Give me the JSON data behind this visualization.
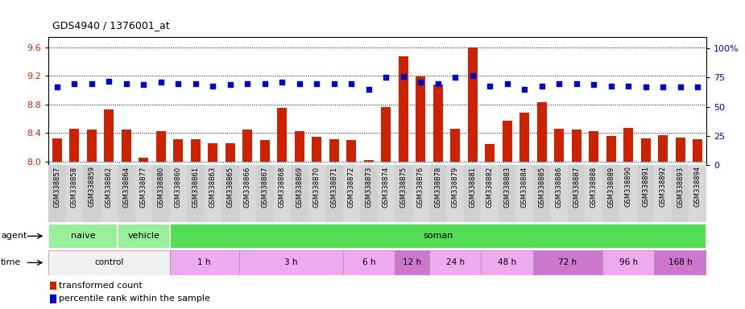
{
  "title": "GDS4940 / 1376001_at",
  "samples": [
    "GSM338857",
    "GSM338858",
    "GSM338859",
    "GSM338862",
    "GSM338864",
    "GSM338877",
    "GSM338880",
    "GSM338860",
    "GSM338861",
    "GSM338863",
    "GSM338865",
    "GSM338866",
    "GSM338867",
    "GSM338868",
    "GSM338869",
    "GSM338870",
    "GSM338871",
    "GSM338872",
    "GSM338873",
    "GSM338874",
    "GSM338875",
    "GSM338876",
    "GSM338878",
    "GSM338879",
    "GSM338881",
    "GSM338882",
    "GSM338883",
    "GSM338884",
    "GSM338885",
    "GSM338886",
    "GSM338887",
    "GSM338888",
    "GSM338889",
    "GSM338890",
    "GSM338891",
    "GSM338892",
    "GSM338893",
    "GSM338894"
  ],
  "red_values": [
    8.32,
    8.46,
    8.45,
    8.73,
    8.45,
    8.05,
    8.42,
    8.31,
    8.31,
    8.25,
    8.26,
    8.45,
    8.3,
    8.75,
    8.43,
    8.35,
    8.31,
    8.3,
    8.02,
    8.76,
    9.47,
    9.19,
    9.08,
    8.46,
    9.6,
    8.24,
    8.57,
    8.68,
    8.83,
    8.46,
    8.45,
    8.42,
    8.36,
    8.47,
    8.32,
    8.37,
    8.34,
    8.31
  ],
  "blue_values": [
    67,
    70,
    70,
    72,
    70,
    69,
    71,
    70,
    70,
    68,
    69,
    70,
    70,
    71,
    70,
    70,
    70,
    70,
    65,
    75,
    76,
    71,
    70,
    75,
    77,
    68,
    70,
    65,
    68,
    70,
    70,
    69,
    68,
    68,
    67,
    67,
    67,
    67
  ],
  "ylim_left": [
    7.95,
    9.75
  ],
  "ylim_right": [
    0,
    110
  ],
  "yticks_left": [
    8.0,
    8.4,
    8.8,
    9.2,
    9.6
  ],
  "yticks_right": [
    0,
    25,
    50,
    75,
    100
  ],
  "bar_color": "#cc2200",
  "dot_color": "#0000cc",
  "xtick_bg": "#d8d8d8",
  "agent_naive_color": "#99ee99",
  "agent_vehicle_color": "#99ee99",
  "agent_soman_color": "#55dd55",
  "time_ctrl_color": "#f0f0f0",
  "time_light_color": "#eeaaee",
  "time_dark_color": "#cc77cc",
  "agent_groups": [
    {
      "label": "naive",
      "start": 0,
      "end": 4,
      "color": "#99ee99"
    },
    {
      "label": "vehicle",
      "start": 4,
      "end": 7,
      "color": "#99ee99"
    },
    {
      "label": "soman",
      "start": 7,
      "end": 38,
      "color": "#55dd55"
    }
  ],
  "time_groups": [
    {
      "label": "control",
      "start": 0,
      "end": 7,
      "color": "#f0f0f0"
    },
    {
      "label": "1 h",
      "start": 7,
      "end": 11,
      "color": "#eeaaee"
    },
    {
      "label": "3 h",
      "start": 11,
      "end": 17,
      "color": "#eeaaee"
    },
    {
      "label": "6 h",
      "start": 17,
      "end": 20,
      "color": "#eeaaee"
    },
    {
      "label": "12 h",
      "start": 20,
      "end": 22,
      "color": "#cc77cc"
    },
    {
      "label": "24 h",
      "start": 22,
      "end": 25,
      "color": "#eeaaee"
    },
    {
      "label": "48 h",
      "start": 25,
      "end": 28,
      "color": "#eeaaee"
    },
    {
      "label": "72 h",
      "start": 28,
      "end": 32,
      "color": "#cc77cc"
    },
    {
      "label": "96 h",
      "start": 32,
      "end": 35,
      "color": "#eeaaee"
    },
    {
      "label": "168 h",
      "start": 35,
      "end": 38,
      "color": "#cc77cc"
    }
  ]
}
